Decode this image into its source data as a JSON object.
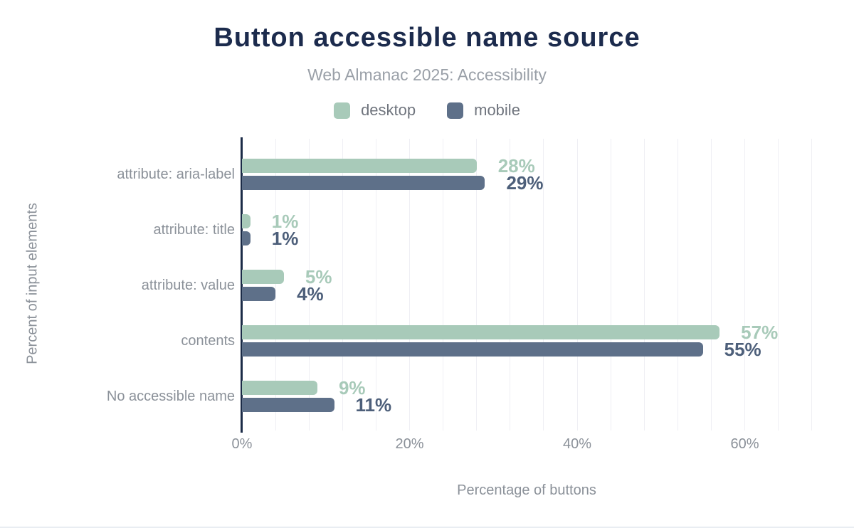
{
  "chart_data": {
    "type": "bar",
    "orientation": "horizontal",
    "title": "Button accessible name source",
    "subtitle": "Web Almanac 2025: Accessibility",
    "xlabel": "Percentage of buttons",
    "ylabel": "Percent of input elements",
    "categories": [
      "attribute: aria-label",
      "attribute: title",
      "attribute: value",
      "contents",
      "No accessible name"
    ],
    "series": [
      {
        "name": "desktop",
        "values": [
          28,
          1,
          5,
          57,
          9
        ],
        "color": "#a8cab9",
        "label_color": "#a8cab9"
      },
      {
        "name": "mobile",
        "values": [
          29,
          1,
          4,
          55,
          11
        ],
        "color": "#5e7089",
        "label_color": "#4d5f7a"
      }
    ],
    "value_suffix": "%",
    "x_ticks": [
      {
        "value": 0,
        "label": "0%"
      },
      {
        "value": 20,
        "label": "20%"
      },
      {
        "value": 40,
        "label": "40%"
      },
      {
        "value": 60,
        "label": "60%"
      }
    ],
    "xlim": [
      0,
      68
    ],
    "grid_step_percent": 4,
    "legend_position": "top",
    "grid": true,
    "colors": {
      "title": "#1c2b4d",
      "subtitle": "#9aa0a8",
      "legend_text": "#70757e",
      "axis_line": "#1b2b47",
      "gridline": "#efeff4",
      "tick_text": "#8b9199"
    }
  }
}
